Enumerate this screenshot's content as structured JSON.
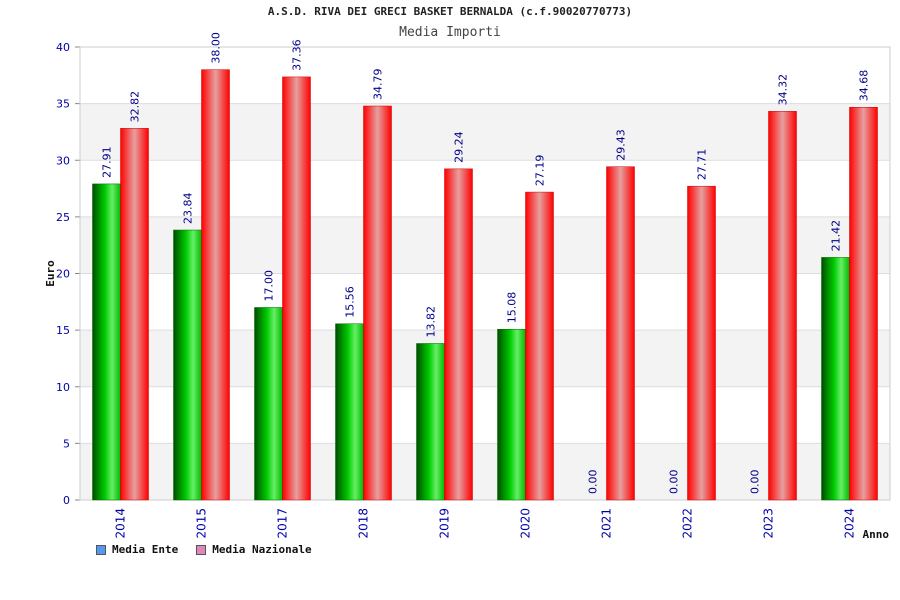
{
  "chart_data": {
    "type": "bar",
    "title": "A.S.D. RIVA DEI GRECI BASKET BERNALDA (c.f.90020770773)",
    "subtitle": "Media Importi",
    "xlabel": "Anno",
    "ylabel": "Euro",
    "ylim": [
      0,
      40
    ],
    "yticks": [
      0,
      5,
      10,
      15,
      20,
      25,
      30,
      35,
      40
    ],
    "categories": [
      "2014",
      "2015",
      "2017",
      "2018",
      "2019",
      "2020",
      "2021",
      "2022",
      "2023",
      "2024"
    ],
    "series": [
      {
        "name": "Media Ente",
        "color": "#00bb00",
        "legend_color": "#5599ee",
        "values": [
          27.91,
          23.84,
          17.0,
          15.56,
          13.82,
          15.08,
          0.0,
          0.0,
          0.0,
          21.42
        ],
        "labels": [
          "27.91",
          "23.84",
          "17.00",
          "15.56",
          "13.82",
          "15.08",
          "0.00",
          "0.00",
          "0.00",
          "21.42"
        ]
      },
      {
        "name": "Media Nazionale",
        "color": "#ee0000",
        "legend_color": "#dd88bb",
        "values": [
          32.82,
          38.0,
          37.36,
          34.79,
          29.24,
          27.19,
          29.43,
          27.71,
          34.32,
          34.68
        ],
        "labels": [
          "32.82",
          "38.00",
          "37.36",
          "34.79",
          "29.24",
          "27.19",
          "29.43",
          "27.71",
          "34.32",
          "34.68"
        ]
      }
    ],
    "grid": true,
    "legend_position": "bottom-left"
  }
}
